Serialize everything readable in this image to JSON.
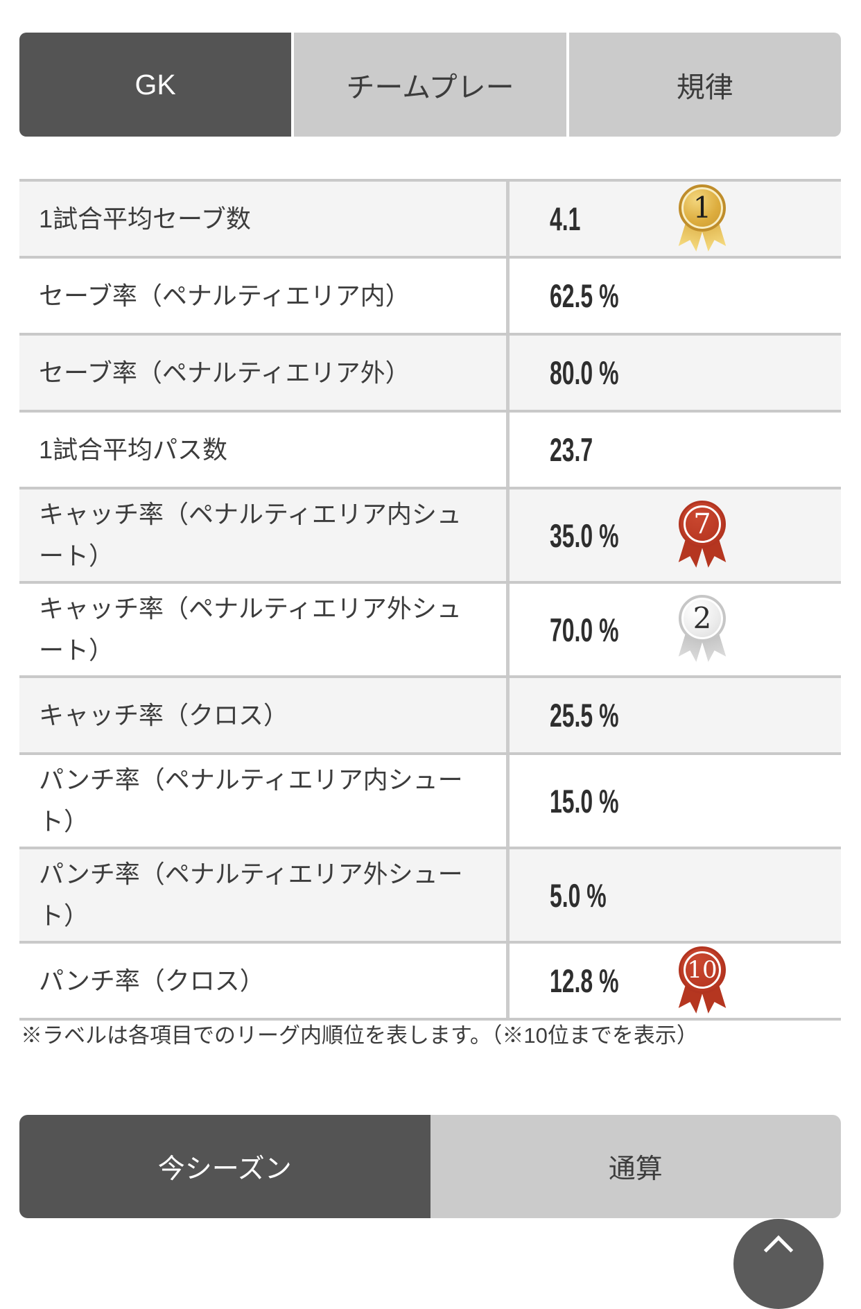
{
  "tabs": [
    {
      "label": "GK",
      "active": true
    },
    {
      "label": "チームプレー",
      "active": false
    },
    {
      "label": "規律",
      "active": false
    }
  ],
  "stats": [
    {
      "label": "1試合平均セーブ数",
      "value": "4.1",
      "rank": "1",
      "rank_medal": "gold"
    },
    {
      "label": "セーブ率（ペナルティエリア内）",
      "value": "62.5 %",
      "rank": null,
      "rank_medal": null
    },
    {
      "label": "セーブ率（ペナルティエリア外）",
      "value": "80.0 %",
      "rank": null,
      "rank_medal": null
    },
    {
      "label": "1試合平均パス数",
      "value": "23.7",
      "rank": null,
      "rank_medal": null
    },
    {
      "label": "キャッチ率（ペナルティエリア内シュート）",
      "value": "35.0 %",
      "rank": "7",
      "rank_medal": "red"
    },
    {
      "label": "キャッチ率（ペナルティエリア外シュート）",
      "value": "70.0 %",
      "rank": "2",
      "rank_medal": "silver"
    },
    {
      "label": "キャッチ率（クロス）",
      "value": "25.5 %",
      "rank": null,
      "rank_medal": null
    },
    {
      "label": "パンチ率（ペナルティエリア内シュート）",
      "value": "15.0 %",
      "rank": null,
      "rank_medal": null
    },
    {
      "label": "パンチ率（ペナルティエリア外シュート）",
      "value": "5.0 %",
      "rank": null,
      "rank_medal": null
    },
    {
      "label": "パンチ率（クロス）",
      "value": "12.8 %",
      "rank": "10",
      "rank_medal": "red"
    }
  ],
  "footnote": "※ラベルは各項目でのリーグ内順位を表します。（※10位までを表示）",
  "period_toggle": [
    {
      "label": "今シーズン",
      "active": true
    },
    {
      "label": "通算",
      "active": false
    }
  ],
  "icons": {
    "scroll_top": "chevron-up-icon"
  },
  "colors": {
    "active_tab_bg": "#545454",
    "inactive_tab_bg": "#cbcbcb",
    "row_alt_bg": "#f4f4f4",
    "divider": "#c9c9c9",
    "text": "#3c3c3c",
    "medal_gold": "#d9a93e",
    "medal_silver": "#dcdcdc",
    "medal_red": "#b83722"
  }
}
